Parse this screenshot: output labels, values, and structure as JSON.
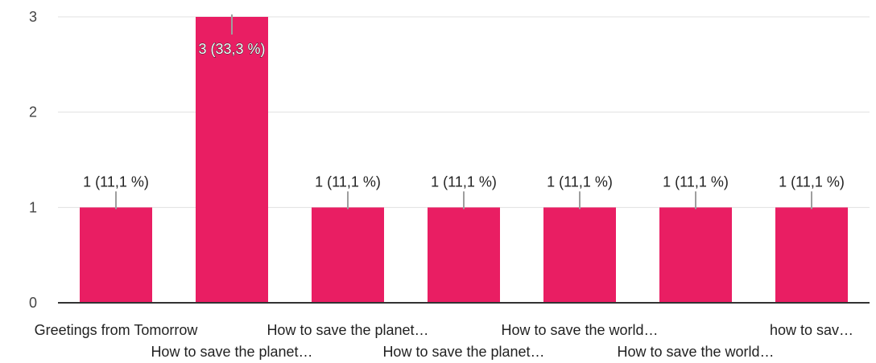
{
  "chart_data": {
    "type": "bar",
    "categories": [
      "Greetings from Tomorrow",
      "How to save the planet…",
      "How to save the planet…",
      "How to save the planet…",
      "How to save the world…",
      "How to save the world…",
      "how to sav…"
    ],
    "values": [
      1,
      3,
      1,
      1,
      1,
      1,
      1
    ],
    "data_labels": [
      "1 (11,1 %)",
      "3 (33,3 %)",
      "1 (11,1 %)",
      "1 (11,1 %)",
      "1 (11,1 %)",
      "1 (11,1 %)",
      "1 (11,1 %)"
    ],
    "y_ticks": [
      "0",
      "1",
      "2",
      "3"
    ],
    "ylim": [
      0,
      3
    ],
    "title": "",
    "xlabel": "",
    "ylabel": "",
    "grid": true,
    "legend": "none",
    "colors": {
      "bar": "#e91e63",
      "grid": "#e0e0e0",
      "axis": "#333333",
      "leader": "#9e9e9e"
    }
  }
}
